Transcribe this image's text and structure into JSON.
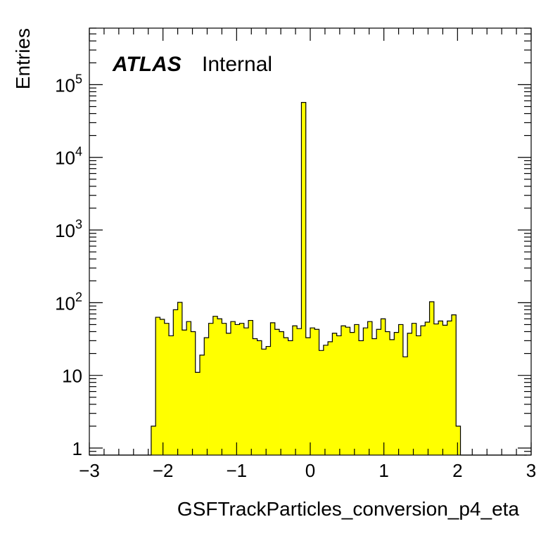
{
  "chart_data": {
    "type": "bar",
    "subtype": "histogram",
    "label_bold": "ATLAS",
    "label_text": "Internal",
    "xlabel": "GSFTrackParticles_conversion_p4_eta",
    "ylabel": "Entries",
    "xlim": [
      -3,
      3
    ],
    "ylim": [
      0.8,
      600000
    ],
    "log_y": true,
    "grid": false,
    "fill_color": "#ffff00",
    "line_color": "#000000",
    "x_tick_labels": [
      "−3",
      "−2",
      "−1",
      "0",
      "1",
      "2",
      "3"
    ],
    "y_tick_labels": [
      {
        "value": 1,
        "base": "1",
        "exp": ""
      },
      {
        "value": 10,
        "base": "10",
        "exp": ""
      },
      {
        "value": 100,
        "base": "10",
        "exp": "2"
      },
      {
        "value": 1000,
        "base": "10",
        "exp": "3"
      },
      {
        "value": 10000,
        "base": "10",
        "exp": "4"
      },
      {
        "value": 100000,
        "base": "10",
        "exp": "5"
      }
    ],
    "bin_edges_start": -3.0,
    "bin_width": 0.06,
    "values": [
      0,
      0,
      0,
      0,
      0,
      0,
      0,
      0,
      0,
      0,
      0,
      0,
      0,
      0,
      2,
      63,
      59,
      52,
      35,
      80,
      101,
      42,
      55,
      40,
      11,
      19,
      33,
      52,
      65,
      60,
      52,
      38,
      55,
      50,
      52,
      45,
      57,
      32,
      30,
      23,
      25,
      53,
      43,
      40,
      33,
      30,
      48,
      44,
      57000,
      33,
      45,
      43,
      22,
      26,
      29,
      38,
      35,
      48,
      46,
      39,
      50,
      30,
      45,
      55,
      32,
      43,
      60,
      40,
      31,
      39,
      50,
      18,
      38,
      52,
      35,
      48,
      54,
      103,
      51,
      56,
      49,
      56,
      68,
      2,
      0,
      0,
      0,
      0,
      0,
      0,
      0,
      0,
      0,
      0,
      0,
      0,
      0,
      0,
      0
    ]
  }
}
